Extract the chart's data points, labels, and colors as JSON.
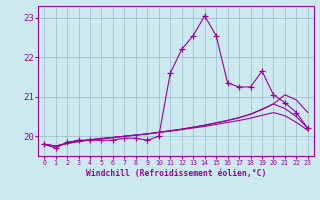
{
  "xlabel": "Windchill (Refroidissement éolien,°C)",
  "background_color": "#cce9f0",
  "line_color": "#990099",
  "grid_color": "#99bbcc",
  "x": [
    0,
    1,
    2,
    3,
    4,
    5,
    6,
    7,
    8,
    9,
    10,
    11,
    12,
    13,
    14,
    15,
    16,
    17,
    18,
    19,
    20,
    21,
    22,
    23
  ],
  "line_main": [
    19.8,
    19.7,
    19.85,
    19.9,
    19.9,
    19.9,
    19.9,
    19.95,
    19.95,
    19.9,
    20.0,
    21.6,
    22.2,
    22.55,
    23.05,
    22.55,
    21.35,
    21.25,
    21.25,
    21.65,
    21.05,
    20.85,
    20.6,
    20.2
  ],
  "line2": [
    19.8,
    19.75,
    19.82,
    19.87,
    19.91,
    19.94,
    19.97,
    20.0,
    20.03,
    20.06,
    20.1,
    20.14,
    20.18,
    20.23,
    20.28,
    20.34,
    20.4,
    20.47,
    20.56,
    20.68,
    20.82,
    21.05,
    20.92,
    20.6
  ],
  "line3": [
    19.8,
    19.75,
    19.82,
    19.87,
    19.91,
    19.94,
    19.97,
    20.0,
    20.03,
    20.06,
    20.1,
    20.14,
    20.18,
    20.23,
    20.28,
    20.34,
    20.4,
    20.47,
    20.56,
    20.68,
    20.82,
    20.7,
    20.5,
    20.2
  ],
  "line4": [
    19.8,
    19.75,
    19.82,
    19.87,
    19.91,
    19.94,
    19.97,
    20.0,
    20.03,
    20.06,
    20.1,
    20.13,
    20.17,
    20.21,
    20.25,
    20.3,
    20.35,
    20.4,
    20.46,
    20.53,
    20.6,
    20.52,
    20.35,
    20.15
  ],
  "ylim": [
    19.5,
    23.3
  ],
  "yticks": [
    20,
    21,
    22,
    23
  ],
  "xlim": [
    -0.5,
    23.5
  ]
}
